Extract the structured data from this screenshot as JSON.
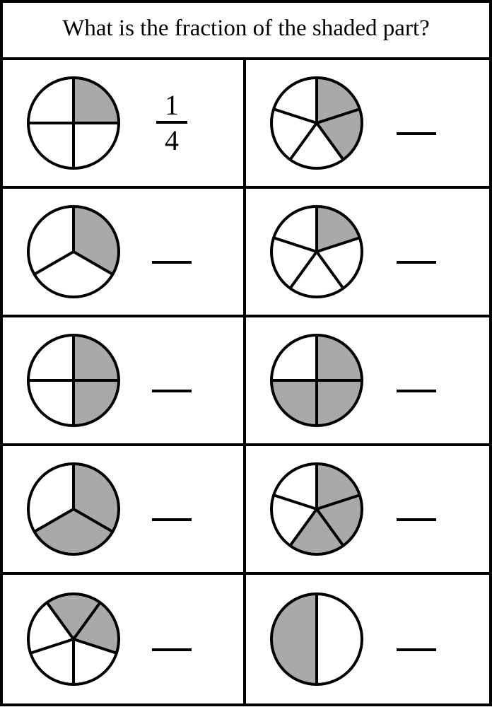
{
  "title": "What is the fraction of the shaded part?",
  "style": {
    "outline_color": "#000000",
    "shade_color": "#a9a9a9",
    "bg_color": "#ffffff",
    "stroke_width": 4,
    "pie_radius": 64,
    "title_fontsize": 33,
    "fraction_fontsize": 40
  },
  "cells": [
    {
      "total": 4,
      "shaded": [
        0
      ],
      "start_angle": -90,
      "answer": {
        "num": "1",
        "den": "4"
      }
    },
    {
      "total": 5,
      "shaded": [
        0,
        1
      ],
      "start_angle": -90,
      "answer": null
    },
    {
      "total": 3,
      "shaded": [
        0
      ],
      "start_angle": -90,
      "answer": null
    },
    {
      "total": 5,
      "shaded": [
        0
      ],
      "start_angle": -90,
      "answer": null
    },
    {
      "total": 4,
      "shaded": [
        0,
        1
      ],
      "start_angle": -90,
      "answer": null
    },
    {
      "total": 4,
      "shaded": [
        0,
        1,
        2
      ],
      "start_angle": -90,
      "answer": null
    },
    {
      "total": 3,
      "shaded": [
        0,
        1
      ],
      "start_angle": -90,
      "answer": null
    },
    {
      "total": 5,
      "shaded": [
        0,
        1,
        2
      ],
      "start_angle": -90,
      "answer": null
    },
    {
      "total": 5,
      "shaded": [
        0,
        1
      ],
      "start_angle": -126,
      "answer": null
    },
    {
      "total": 2,
      "shaded": [
        1
      ],
      "start_angle": -90,
      "answer": null
    }
  ]
}
